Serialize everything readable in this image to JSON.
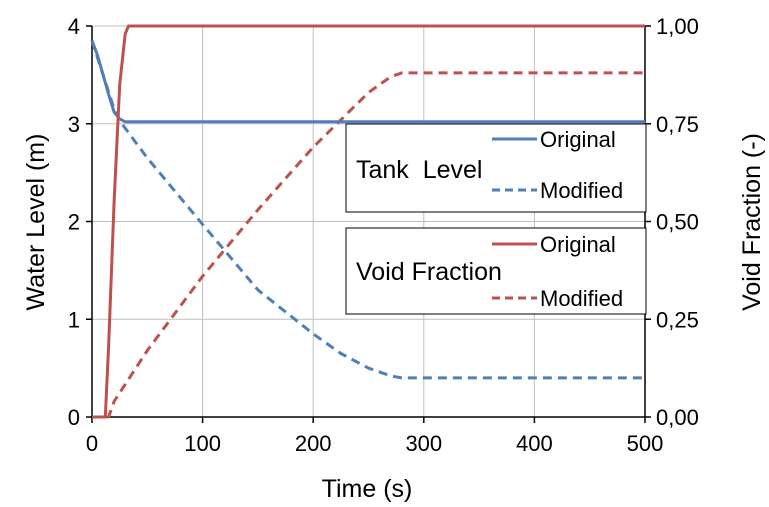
{
  "chart_data": {
    "type": "line",
    "xlabel": "Time (s)",
    "ylabel_left": "Water Level (m)",
    "ylabel_right": "Void Fraction (-)",
    "xlim": [
      0,
      500
    ],
    "ylim_left": [
      0,
      4
    ],
    "ylim_right": [
      0,
      1
    ],
    "x_ticks": [
      "0",
      "100",
      "200",
      "300",
      "400",
      "500"
    ],
    "y_left_ticks": [
      "0",
      "1",
      "2",
      "3",
      "4"
    ],
    "y_right_ticks": [
      "0,00",
      "0,25",
      "0,50",
      "0,75",
      "1,00"
    ],
    "grid": true,
    "colors": {
      "tank": "#4f7fb8",
      "void": "#c0504d"
    },
    "legend": {
      "groups": [
        {
          "title": "Tank  Level",
          "entries": [
            "Original",
            "Modified"
          ]
        },
        {
          "title": "Void Fraction",
          "entries": [
            "Original",
            "Modified"
          ]
        }
      ]
    },
    "series": [
      {
        "group": "Tank  Level",
        "name": "Original",
        "axis": "left",
        "style": "solid",
        "color": "#4f7fb8",
        "x": [
          0,
          5,
          10,
          15,
          20,
          25,
          30,
          500
        ],
        "y": [
          3.85,
          3.7,
          3.5,
          3.3,
          3.12,
          3.05,
          3.02,
          3.02
        ]
      },
      {
        "group": "Tank  Level",
        "name": "Modified",
        "axis": "left",
        "style": "dashed",
        "color": "#4f7fb8",
        "x": [
          0,
          10,
          20,
          25,
          50,
          100,
          150,
          200,
          225,
          250,
          270,
          280,
          500
        ],
        "y": [
          3.85,
          3.5,
          3.15,
          3.03,
          2.65,
          1.97,
          1.3,
          0.85,
          0.65,
          0.5,
          0.42,
          0.4,
          0.4
        ]
      },
      {
        "group": "Void Fraction",
        "name": "Original",
        "axis": "right",
        "style": "solid",
        "color": "#c0504d",
        "x": [
          0,
          12,
          15,
          20,
          25,
          30,
          33,
          500
        ],
        "y": [
          0,
          0,
          0.18,
          0.55,
          0.85,
          0.98,
          1.0,
          1.0
        ]
      },
      {
        "group": "Void Fraction",
        "name": "Modified",
        "axis": "right",
        "style": "dashed",
        "color": "#c0504d",
        "x": [
          0,
          15,
          20,
          50,
          100,
          150,
          200,
          250,
          270,
          280,
          500
        ],
        "y": [
          0,
          0,
          0.04,
          0.17,
          0.36,
          0.53,
          0.69,
          0.83,
          0.87,
          0.88,
          0.88
        ]
      }
    ]
  }
}
